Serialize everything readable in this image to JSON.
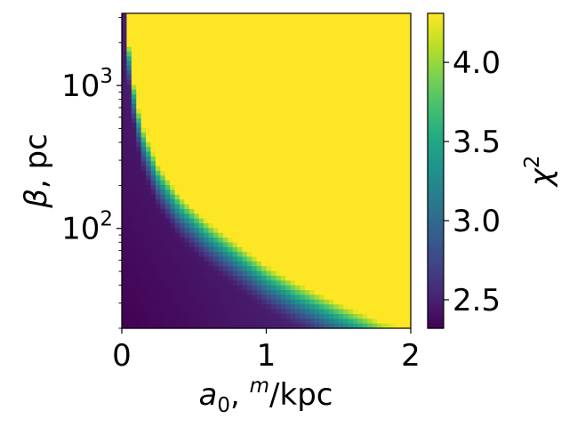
{
  "chart_data": {
    "type": "heatmap",
    "xlabel_parts": {
      "base": "a",
      "sub": "0",
      "sep": ", ",
      "sup": "m",
      "unit": "/kpc"
    },
    "ylabel_parts": {
      "sym": "β",
      "rest": ", pc"
    },
    "colorbar_label_parts": {
      "base": "χ",
      "sup": "2"
    },
    "x_range": [
      0,
      2
    ],
    "y_range": [
      20,
      3200
    ],
    "y_scale": "log",
    "x_ticks": [
      {
        "value": 0,
        "label": "0"
      },
      {
        "value": 1,
        "label": "1"
      },
      {
        "value": 2,
        "label": "2"
      }
    ],
    "y_ticks": [
      {
        "value": 100,
        "base": "10",
        "exp": "2"
      },
      {
        "value": 1000,
        "base": "10",
        "exp": "3"
      }
    ],
    "colorbar_range": [
      2.32,
      4.31
    ],
    "colorbar_ticks": [
      {
        "value": 2.5,
        "label": "2.5"
      },
      {
        "value": 3.0,
        "label": "3.0"
      },
      {
        "value": 3.5,
        "label": "3.5"
      },
      {
        "value": 4.0,
        "label": "4.0"
      }
    ],
    "colormap": "viridis",
    "boundary_points": [
      {
        "x": 0.03,
        "y": 3200
      },
      {
        "x": 0.06,
        "y": 1500
      },
      {
        "x": 0.1,
        "y": 800
      },
      {
        "x": 0.15,
        "y": 500
      },
      {
        "x": 0.25,
        "y": 280
      },
      {
        "x": 0.4,
        "y": 170
      },
      {
        "x": 0.6,
        "y": 110
      },
      {
        "x": 0.8,
        "y": 78
      },
      {
        "x": 1.0,
        "y": 55
      },
      {
        "x": 1.2,
        "y": 42
      },
      {
        "x": 1.5,
        "y": 30
      },
      {
        "x": 1.8,
        "y": 22
      },
      {
        "x": 2.0,
        "y": 20
      }
    ]
  }
}
